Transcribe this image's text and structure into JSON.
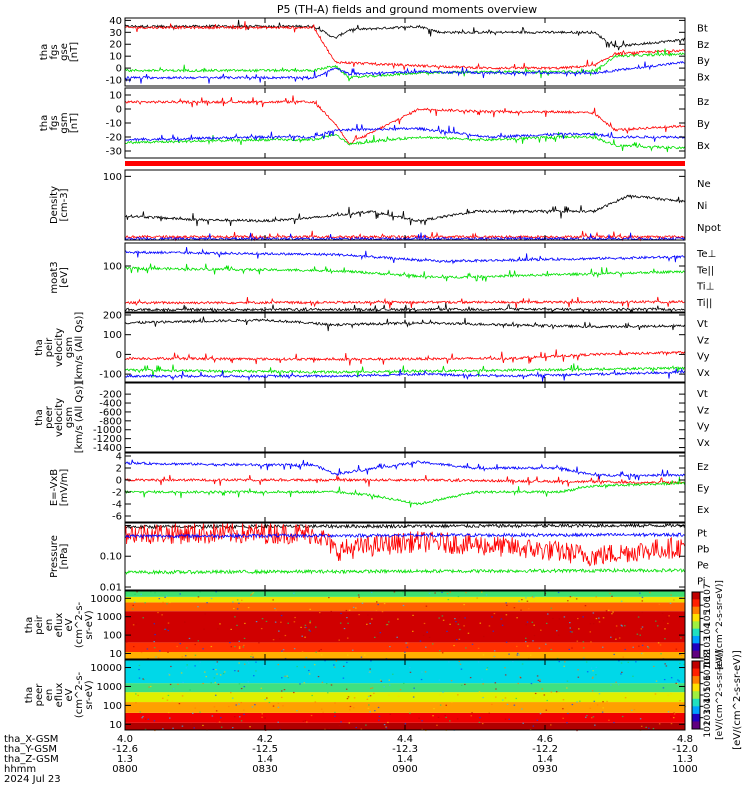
{
  "title": "P5 (TH-A) fields and ground moments overview",
  "colors": {
    "black": "#000000",
    "red": "#ff0000",
    "green": "#00e000",
    "blue": "#0000ff"
  },
  "chart_data": [
    {
      "type": "line",
      "panel": "fgs_gse",
      "ylabel_lines": [
        "tha",
        "fgs",
        "gse",
        "[nT]"
      ],
      "ylim": [
        -15,
        42
      ],
      "yticks": [
        -10,
        0,
        10,
        20,
        30,
        40
      ],
      "series": [
        {
          "name": "Bt",
          "color": "#000000",
          "x": [
            4.0,
            4.12,
            4.2,
            4.27,
            4.3,
            4.32,
            4.42,
            4.45,
            4.52,
            4.62,
            4.67,
            4.7,
            4.8
          ],
          "values": [
            35,
            35,
            35,
            35,
            25,
            32,
            35,
            30,
            30,
            30,
            30,
            18,
            24
          ]
        },
        {
          "name": "Bz",
          "color": "#ff0000",
          "x": [
            4.0,
            4.12,
            4.2,
            4.27,
            4.3,
            4.42,
            4.52,
            4.62,
            4.67,
            4.7,
            4.8
          ],
          "values": [
            34,
            34,
            34,
            34,
            5,
            2,
            0,
            0,
            2,
            12,
            15
          ]
        },
        {
          "name": "By",
          "color": "#00e000",
          "x": [
            4.0,
            4.2,
            4.27,
            4.3,
            4.32,
            4.42,
            4.52,
            4.62,
            4.67,
            4.7,
            4.8
          ],
          "values": [
            -2,
            -2,
            -2,
            2,
            -8,
            -4,
            -3,
            -3,
            -3,
            10,
            12
          ]
        },
        {
          "name": "Bx",
          "color": "#0000ff",
          "x": [
            4.0,
            4.2,
            4.27,
            4.3,
            4.32,
            4.42,
            4.52,
            4.62,
            4.67,
            4.7,
            4.8
          ],
          "values": [
            -8,
            -8,
            -8,
            0,
            -5,
            -3,
            -4,
            -4,
            -4,
            -2,
            5
          ]
        }
      ]
    },
    {
      "type": "line",
      "panel": "fgs_gsm",
      "ylabel_lines": [
        "tha",
        "fgs",
        "gsm",
        "[nT]"
      ],
      "ylim": [
        -35,
        15
      ],
      "yticks": [
        -30,
        -20,
        -10,
        0,
        10
      ],
      "series": [
        {
          "name": "Bz",
          "color": "#ff0000",
          "x": [
            4.0,
            4.2,
            4.27,
            4.3,
            4.32,
            4.42,
            4.52,
            4.62,
            4.67,
            4.7,
            4.8
          ],
          "values": [
            5,
            5,
            5,
            -10,
            -25,
            0,
            -2,
            -2,
            -3,
            -15,
            -12
          ]
        },
        {
          "name": "By",
          "color": "#00e000",
          "x": [
            4.0,
            4.2,
            4.27,
            4.3,
            4.32,
            4.42,
            4.52,
            4.62,
            4.67,
            4.7,
            4.8
          ],
          "values": [
            -24,
            -22,
            -22,
            -18,
            -25,
            -20,
            -22,
            -20,
            -20,
            -26,
            -28
          ]
        },
        {
          "name": "Bx",
          "color": "#0000ff",
          "x": [
            4.0,
            4.2,
            4.27,
            4.3,
            4.42,
            4.52,
            4.62,
            4.67,
            4.7,
            4.8
          ],
          "values": [
            -22,
            -20,
            -20,
            -15,
            -14,
            -20,
            -18,
            -18,
            -20,
            -20
          ]
        }
      ]
    },
    {
      "type": "line",
      "panel": "density",
      "ylabel_lines": [
        "Density",
        "[cm-3]"
      ],
      "ylim": [
        0,
        110
      ],
      "yticks": [
        100
      ],
      "series": [
        {
          "name": "Ne",
          "color": "#ff0000",
          "x": [
            4.0,
            4.8
          ],
          "values": [
            5,
            5
          ]
        },
        {
          "name": "Ni",
          "color": "#000000",
          "x": [
            4.0,
            4.1,
            4.2,
            4.27,
            4.35,
            4.42,
            4.5,
            4.62,
            4.67,
            4.72,
            4.8
          ],
          "values": [
            38,
            32,
            30,
            35,
            45,
            30,
            45,
            45,
            45,
            70,
            60
          ]
        },
        {
          "name": "Npot",
          "color": "#0000ff",
          "x": [
            4.0,
            4.8
          ],
          "values": [
            2,
            2
          ]
        }
      ]
    },
    {
      "type": "line",
      "panel": "moat",
      "ylabel_lines": [
        "moat3",
        "[eV]"
      ],
      "ylim": [
        0,
        150
      ],
      "yticks": [
        100
      ],
      "series": [
        {
          "name": "Te⊥",
          "color": "#ff0000",
          "x": [
            4.0,
            4.8
          ],
          "values": [
            20,
            22
          ]
        },
        {
          "name": "Te||",
          "color": "#000000",
          "x": [
            4.0,
            4.8
          ],
          "values": [
            5,
            6
          ]
        },
        {
          "name": "Ti⊥",
          "color": "#0000ff",
          "x": [
            4.0,
            4.3,
            4.45,
            4.8
          ],
          "values": [
            130,
            125,
            110,
            120
          ]
        },
        {
          "name": "Ti||",
          "color": "#00e000",
          "x": [
            4.0,
            4.3,
            4.45,
            4.8
          ],
          "values": [
            95,
            90,
            75,
            88
          ]
        }
      ]
    },
    {
      "type": "line",
      "panel": "peir_velocity",
      "ylabel_lines": [
        "tha",
        "peir",
        "velocity",
        "gsm",
        "[km/s (All Qs)]"
      ],
      "ylim": [
        -140,
        210
      ],
      "yticks": [
        -100,
        0,
        100,
        200
      ],
      "series": [
        {
          "name": "Vt",
          "color": "#000000",
          "x": [
            4.0,
            4.2,
            4.3,
            4.42,
            4.55,
            4.67,
            4.8
          ],
          "values": [
            160,
            175,
            150,
            160,
            150,
            140,
            145
          ]
        },
        {
          "name": "Vz",
          "color": "#ff0000",
          "x": [
            4.0,
            4.3,
            4.55,
            4.67,
            4.8
          ],
          "values": [
            -20,
            -25,
            -20,
            0,
            10
          ]
        },
        {
          "name": "Vy",
          "color": "#00e000",
          "x": [
            4.0,
            4.3,
            4.55,
            4.8
          ],
          "values": [
            -80,
            -90,
            -80,
            -70
          ]
        },
        {
          "name": "Vx",
          "color": "#0000ff",
          "x": [
            4.0,
            4.3,
            4.42,
            4.55,
            4.8
          ],
          "values": [
            -110,
            -110,
            -100,
            -110,
            -90
          ]
        }
      ]
    },
    {
      "type": "line",
      "panel": "peer_velocity",
      "ylabel_lines": [
        "tha",
        "peer",
        "velocity",
        "gsm",
        "[km/s (All Qs)]"
      ],
      "ylim": [
        -1500,
        50
      ],
      "yticks": [
        -200,
        -400,
        -600,
        -800,
        -1000,
        -1200,
        -1400
      ],
      "series": [
        {
          "name": "Vt",
          "color": "#000000",
          "x": [],
          "values": []
        },
        {
          "name": "Vz",
          "color": "#ff0000",
          "x": [],
          "values": []
        },
        {
          "name": "Vy",
          "color": "#00e000",
          "x": [],
          "values": []
        },
        {
          "name": "Vx",
          "color": "#0000ff",
          "x": [],
          "values": []
        }
      ]
    },
    {
      "type": "line",
      "panel": "efield",
      "ylabel_lines": [
        "E=-VxB",
        "[mV/m]"
      ],
      "ylim": [
        -7,
        4.5
      ],
      "yticks": [
        -6,
        -4,
        -2,
        0,
        2,
        4
      ],
      "series": [
        {
          "name": "Ez",
          "color": "#ff0000",
          "x": [
            4.0,
            4.3,
            4.42,
            4.67,
            4.8
          ],
          "values": [
            0,
            0,
            0,
            -0.3,
            -0.5
          ]
        },
        {
          "name": "Ey",
          "color": "#00e000",
          "x": [
            4.0,
            4.2,
            4.27,
            4.3,
            4.35,
            4.42,
            4.5,
            4.62,
            4.67,
            4.8
          ],
          "values": [
            -2,
            -2,
            -2,
            -2,
            -2.5,
            -4,
            -2,
            -2,
            -1,
            -0.5
          ]
        },
        {
          "name": "Ex",
          "color": "#0000ff",
          "x": [
            4.0,
            4.2,
            4.27,
            4.3,
            4.42,
            4.5,
            4.62,
            4.67,
            4.8
          ],
          "values": [
            2.8,
            2.5,
            2.5,
            1,
            3,
            2,
            2,
            0.8,
            0.8
          ]
        }
      ]
    },
    {
      "type": "line",
      "panel": "pressure",
      "ylabel_lines": [
        "Pressure",
        "[nPa]"
      ],
      "yscale": "log",
      "ylim": [
        0.008,
        1.2
      ],
      "yticks": [
        0.01,
        0.1,
        1
      ],
      "ytick_labels": [
        "0.01",
        "0.10",
        ""
      ],
      "series": [
        {
          "name": "Pt",
          "color": "#000000",
          "x": [
            4.0,
            4.8
          ],
          "values": [
            0.9,
            1.0
          ]
        },
        {
          "name": "Pb",
          "color": "#ff0000",
          "x": [
            4.0,
            4.27,
            4.3,
            4.42,
            4.67,
            4.8
          ],
          "values": [
            0.55,
            0.55,
            0.15,
            0.3,
            0.1,
            0.2
          ]
        },
        {
          "name": "Pe",
          "color": "#00e000",
          "x": [
            4.0,
            4.8
          ],
          "values": [
            0.03,
            0.035
          ]
        },
        {
          "name": "Pi",
          "color": "#0000ff",
          "x": [
            4.0,
            4.8
          ],
          "values": [
            0.45,
            0.5
          ]
        }
      ]
    },
    {
      "type": "heatmap",
      "panel": "peir_en_eflux",
      "ylabel_lines": [
        "tha",
        "peir",
        "en",
        "eflux",
        "eV",
        "(cm^2-s-",
        "sr-eV)"
      ],
      "yscale": "log",
      "ylim": [
        5,
        25000
      ],
      "yticks": [
        10,
        100,
        1000,
        10000
      ],
      "bands": [
        {
          "from": 5,
          "to": 12,
          "color": "#ffb000"
        },
        {
          "from": 12,
          "to": 40,
          "color": "#ff3000"
        },
        {
          "from": 40,
          "to": 2000,
          "color": "#d00000"
        },
        {
          "from": 2000,
          "to": 6000,
          "color": "#ff6000"
        },
        {
          "from": 6000,
          "to": 12000,
          "color": "#f0e000"
        },
        {
          "from": 12000,
          "to": 25000,
          "color": "#40e070"
        }
      ]
    },
    {
      "type": "heatmap",
      "panel": "peer_en_eflux",
      "ylabel_lines": [
        "tha",
        "peer",
        "en",
        "eflux",
        "eV",
        "(cm^2-s-",
        "sr-eV)"
      ],
      "yscale": "log",
      "ylim": [
        5,
        25000
      ],
      "yticks": [
        10,
        100,
        1000,
        10000
      ],
      "bands": [
        {
          "from": 5,
          "to": 12,
          "color": "#b00000"
        },
        {
          "from": 12,
          "to": 40,
          "color": "#f00000"
        },
        {
          "from": 40,
          "to": 150,
          "color": "#ffa000"
        },
        {
          "from": 150,
          "to": 500,
          "color": "#e0f000"
        },
        {
          "from": 500,
          "to": 1500,
          "color": "#40e080"
        },
        {
          "from": 1500,
          "to": 25000,
          "color": "#00d8e8"
        }
      ]
    }
  ],
  "colorbar": {
    "label": "[eV/(cm^2-s-sr-eV)]",
    "inner_label": "[eV/(cm^2-s-sr-eV)]",
    "top_ticks": [
      "10^7",
      "10^6",
      "10^5",
      "10^4",
      "10^3",
      "10^2"
    ],
    "bottom_ticks": [
      "10^8",
      "10^7",
      "10^6",
      "10^5",
      "10^4",
      "10^3",
      "10^2"
    ]
  },
  "xaxis": {
    "range": [
      4.0,
      4.8
    ],
    "rows": [
      {
        "label": "tha_X-GSM",
        "values": [
          "4.0",
          "4.2",
          "4.4",
          "4.6",
          "4.8"
        ]
      },
      {
        "label": "tha_Y-GSM",
        "values": [
          "-12.6",
          "-12.5",
          "-12.3",
          "-12.2",
          "-12.0"
        ]
      },
      {
        "label": "tha_Z-GSM",
        "values": [
          "1.3",
          "1.4",
          "1.4",
          "1.4",
          "1.3"
        ]
      },
      {
        "label": "hhmm",
        "values": [
          "0800",
          "0830",
          "0900",
          "0930",
          "1000"
        ]
      }
    ],
    "date": "2024 Jul 23"
  }
}
